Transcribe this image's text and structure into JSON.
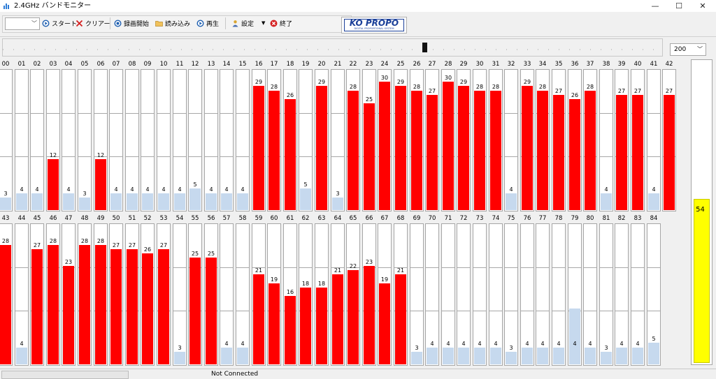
{
  "window": {
    "title": "2.4GHz バンドモニター",
    "minimize_symbol": "—",
    "maximize_symbol": "☐",
    "close_symbol": "✕"
  },
  "toolbar": {
    "combo_value": "",
    "start_label": "スタート",
    "clear_label": "クリアー",
    "record_label": "録画開始",
    "load_label": "読み込み",
    "play_label": "再生",
    "settings_label": "設定",
    "exit_label": "終了"
  },
  "logo": {
    "text": "KO PROPO",
    "subtext": "DIGITAL PROPORTIONAL SYSTEM"
  },
  "zoom": {
    "value": "200"
  },
  "slider": {
    "position": 0.64
  },
  "colors": {
    "active": "#ff0000",
    "inactive": "#c6d9ee",
    "level": "#ffff00",
    "logo": "#1a3f99"
  },
  "channels": {
    "max_value": 33,
    "active_threshold": 10,
    "rows": [
      {
        "labels": [
          "00",
          "01",
          "02",
          "03",
          "04",
          "05",
          "06",
          "07",
          "08",
          "09",
          "10",
          "11",
          "12",
          "13",
          "14",
          "15",
          "16",
          "17",
          "18",
          "19",
          "20",
          "21",
          "22",
          "23",
          "24",
          "25",
          "26",
          "27",
          "28",
          "29",
          "30",
          "31",
          "32",
          "33",
          "34",
          "35",
          "36",
          "37",
          "38",
          "39",
          "40",
          "41",
          "42"
        ],
        "values": [
          3,
          4,
          4,
          12,
          4,
          3,
          12,
          4,
          4,
          4,
          4,
          4,
          5,
          4,
          4,
          4,
          29,
          28,
          26,
          5,
          29,
          3,
          28,
          25,
          30,
          29,
          28,
          27,
          30,
          29,
          28,
          28,
          4,
          29,
          28,
          27,
          26,
          28,
          4,
          27,
          27,
          4,
          27
        ],
        "labels_shown": [
          "3",
          "4",
          "4",
          "12",
          "4",
          "3",
          "12",
          "4",
          "4",
          "4",
          "4",
          "4",
          "5",
          "4",
          "4",
          "4",
          "29",
          "28",
          "26",
          "5",
          "29",
          "3",
          "28",
          "25",
          "30",
          "29",
          "28",
          "27",
          "30",
          "29",
          "28",
          "28",
          "4",
          "29",
          "28",
          "27",
          "26",
          "28",
          "4",
          "27",
          "27",
          "4",
          "27"
        ]
      },
      {
        "labels": [
          "43",
          "44",
          "45",
          "46",
          "47",
          "48",
          "49",
          "50",
          "51",
          "52",
          "53",
          "54",
          "55",
          "56",
          "57",
          "58",
          "59",
          "60",
          "61",
          "62",
          "63",
          "64",
          "65",
          "66",
          "67",
          "68",
          "69",
          "70",
          "71",
          "72",
          "73",
          "74",
          "75",
          "76",
          "77",
          "78",
          "79",
          "80",
          "81",
          "82",
          "83",
          "84"
        ],
        "values": [
          28,
          4,
          27,
          28,
          23,
          28,
          28,
          27,
          27,
          26,
          27,
          3,
          25,
          25,
          4,
          4,
          21,
          19,
          16,
          18,
          18,
          21,
          22,
          23,
          19,
          21,
          3,
          4,
          4,
          4,
          4,
          4,
          3,
          4,
          4,
          4,
          4,
          4,
          3,
          4,
          4,
          5
        ],
        "labels_shown": [
          "28",
          "4",
          "27",
          "28",
          "23",
          "28",
          "28",
          "27",
          "27",
          "26",
          "27",
          "3",
          "25",
          "25",
          "4",
          "4",
          "21",
          "19",
          "16",
          "18",
          "18",
          "21",
          "22",
          "23",
          "19",
          "21",
          "3",
          "4",
          "4",
          "4",
          "4",
          "4",
          "3",
          "4",
          "4",
          "4",
          "4",
          "4",
          "3",
          "4",
          "4",
          "5"
        ],
        "overlay": {
          "channel": "79",
          "value": 13
        }
      }
    ]
  },
  "level": {
    "value": 54,
    "label": "54",
    "max": 100
  },
  "status": {
    "text": "Not Connected"
  }
}
